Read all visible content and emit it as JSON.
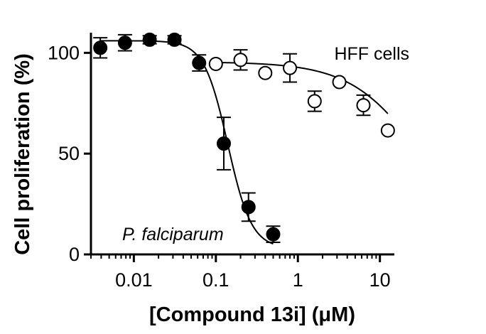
{
  "chart_data": {
    "type": "scatter",
    "title": "",
    "xlabel": "[Compound 13i] (μM)",
    "ylabel": "Cell proliferation (%)",
    "xscale": "log",
    "xlim": [
      0.003,
      15
    ],
    "ylim": [
      0,
      110
    ],
    "x_ticks": [
      {
        "value": 0.01,
        "label": "0.01"
      },
      {
        "value": 0.1,
        "label": "0.1"
      },
      {
        "value": 1,
        "label": "1"
      },
      {
        "value": 10,
        "label": "10"
      }
    ],
    "y_ticks": [
      {
        "value": 0,
        "label": "0"
      },
      {
        "value": 50,
        "label": "50"
      },
      {
        "value": 100,
        "label": "100"
      }
    ],
    "grid": false,
    "legend": "none",
    "series": [
      {
        "name": "P. falciparum",
        "marker": "filled-circle",
        "color": "#000000",
        "points": [
          {
            "x": 0.0039,
            "y": 102.5,
            "err": 5
          },
          {
            "x": 0.0078,
            "y": 105,
            "err": 4
          },
          {
            "x": 0.0156,
            "y": 106.5,
            "err": 2
          },
          {
            "x": 0.0313,
            "y": 106.5,
            "err": 2
          },
          {
            "x": 0.0625,
            "y": 95,
            "err": 4
          },
          {
            "x": 0.125,
            "y": 55,
            "err": 13
          },
          {
            "x": 0.25,
            "y": 23.5,
            "err": 7
          },
          {
            "x": 0.5,
            "y": 10,
            "err": 4
          }
        ],
        "fit": {
          "top": 106,
          "bottom": 3,
          "ic50": 0.14,
          "hill": 3
        }
      },
      {
        "name": "HFF cells",
        "marker": "open-circle",
        "color": "#000000",
        "points": [
          {
            "x": 0.1,
            "y": 94.5,
            "err": 0
          },
          {
            "x": 0.2,
            "y": 96.5,
            "err": 5
          },
          {
            "x": 0.4,
            "y": 90,
            "err": 0
          },
          {
            "x": 0.8,
            "y": 92.5,
            "err": 7
          },
          {
            "x": 1.6,
            "y": 76,
            "err": 5
          },
          {
            "x": 3.2,
            "y": 85.5,
            "err": 0
          },
          {
            "x": 6.3,
            "y": 74,
            "err": 5
          },
          {
            "x": 12.5,
            "y": 61.5,
            "err": 0
          }
        ],
        "fit": {
          "top": 95.5,
          "bottom": 0,
          "ic50": 34,
          "hill": 1
        }
      }
    ],
    "annotations": [
      {
        "text": "HFF cells",
        "style": "normal",
        "near": "top-right"
      },
      {
        "text": "P. falciparum",
        "style": "italic",
        "near": "bottom-left"
      }
    ]
  }
}
